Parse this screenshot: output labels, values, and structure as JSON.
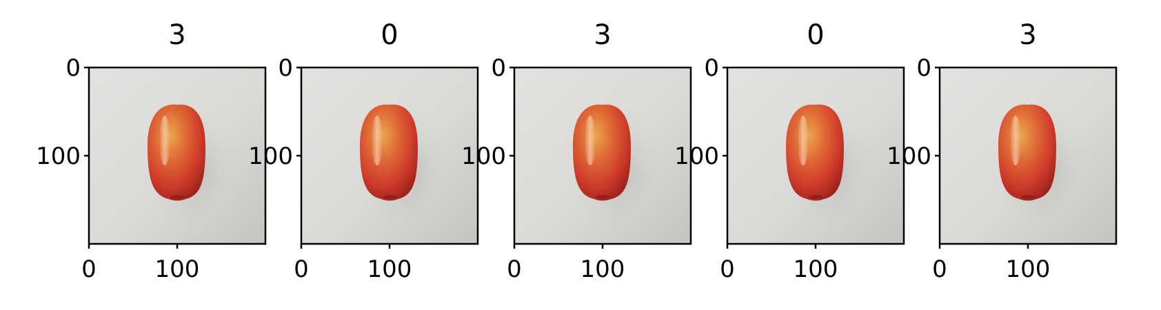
{
  "colors": {
    "background_light": "#e2e0de",
    "background_dark": "#c8c7c3",
    "apple_red": "#d0392a",
    "apple_dark_red": "#9c2018",
    "apple_yellow": "#e8a24a",
    "axis": "#000000"
  },
  "panels": [
    {
      "title": "3",
      "image_subject": "red-apple-photo",
      "y_ticks": [
        "0",
        "100"
      ],
      "x_ticks": [
        "0",
        "100"
      ]
    },
    {
      "title": "0",
      "image_subject": "red-apple-photo",
      "y_ticks": [
        "0",
        "100"
      ],
      "x_ticks": [
        "0",
        "100"
      ]
    },
    {
      "title": "3",
      "image_subject": "red-apple-photo",
      "y_ticks": [
        "0",
        "100"
      ],
      "x_ticks": [
        "0",
        "100"
      ]
    },
    {
      "title": "0",
      "image_subject": "red-apple-photo",
      "y_ticks": [
        "0",
        "100"
      ],
      "x_ticks": [
        "0",
        "100"
      ]
    },
    {
      "title": "3",
      "image_subject": "red-apple-photo",
      "y_ticks": [
        "0",
        "100"
      ],
      "x_ticks": [
        "0",
        "100"
      ]
    }
  ]
}
